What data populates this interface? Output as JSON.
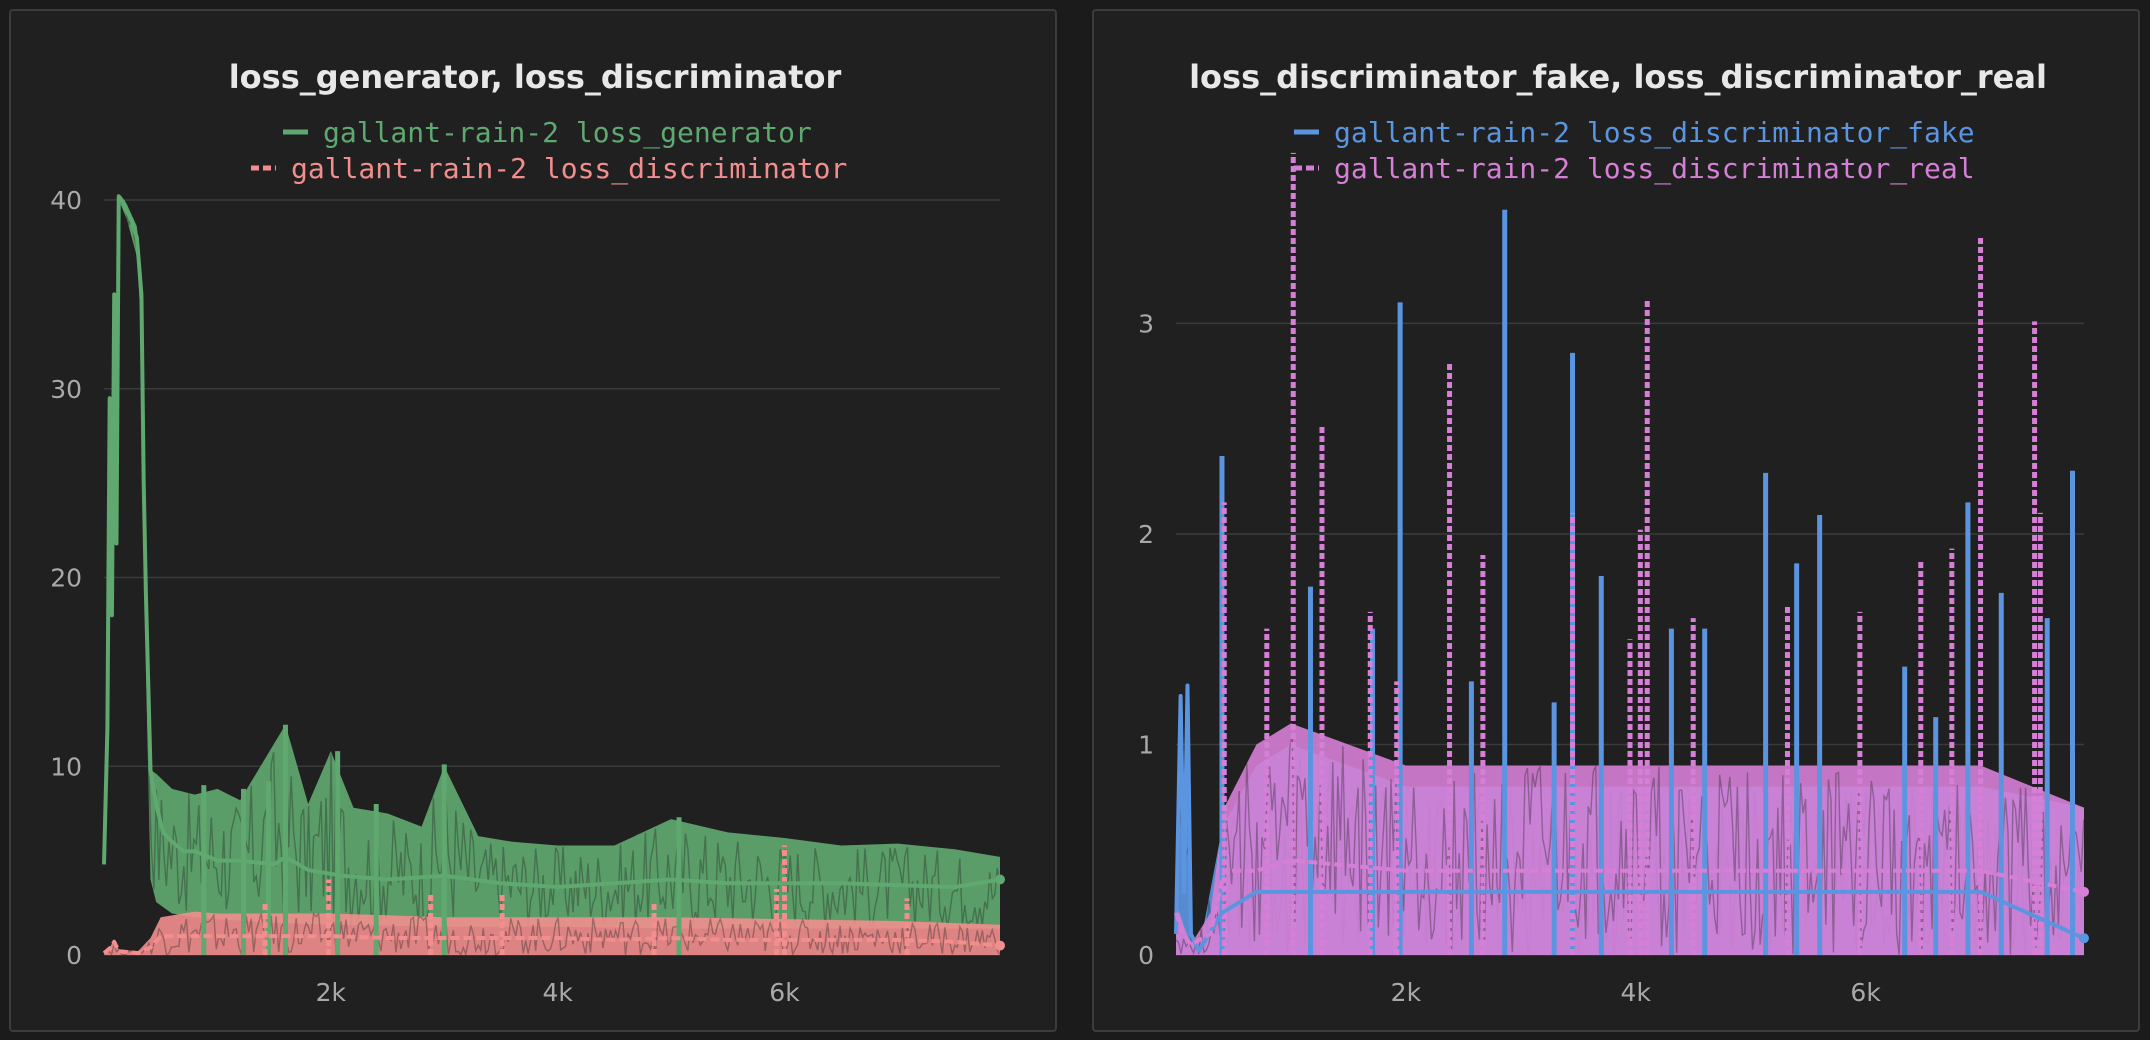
{
  "chart_data": [
    {
      "type": "line",
      "title": "loss_generator, loss_discriminator",
      "xlabel": "",
      "ylabel": "",
      "xlim": [
        0,
        7900
      ],
      "ylim": [
        0,
        40
      ],
      "yticks": [
        0,
        10,
        20,
        30,
        40
      ],
      "ytick_labels": [
        "0",
        "10",
        "20",
        "30",
        "40"
      ],
      "xticks": [
        2000,
        4000,
        6000
      ],
      "xtick_labels": [
        "2k",
        "4k",
        "6k"
      ],
      "grid": true,
      "legend_position": "top-center",
      "series": [
        {
          "name": "gallant-rain-2 loss_generator",
          "color": "#5fa86f",
          "style": "solid",
          "band": true,
          "points": [
            [
              0,
              4.8
            ],
            [
              30,
              12
            ],
            [
              50,
              29.5
            ],
            [
              70,
              18
            ],
            [
              90,
              35
            ],
            [
              110,
              21.8
            ],
            [
              130,
              40.2
            ],
            [
              170,
              39.9
            ],
            [
              200,
              39.4
            ],
            [
              240,
              39
            ],
            [
              290,
              38
            ],
            [
              330,
              35
            ],
            [
              350,
              25
            ],
            [
              370,
              19
            ],
            [
              410,
              9.8
            ],
            [
              460,
              8
            ],
            [
              520,
              6.5
            ],
            [
              600,
              6
            ],
            [
              700,
              5.5
            ],
            [
              800,
              5.5
            ],
            [
              1000,
              5
            ],
            [
              1200,
              5
            ],
            [
              1500,
              4.8
            ],
            [
              1600,
              5.2
            ],
            [
              1800,
              4.5
            ],
            [
              2100,
              4.2
            ],
            [
              2500,
              4
            ],
            [
              3000,
              4.2
            ],
            [
              3500,
              3.8
            ],
            [
              4000,
              3.6
            ],
            [
              4500,
              3.8
            ],
            [
              5000,
              4
            ],
            [
              5500,
              3.8
            ],
            [
              6000,
              3.8
            ],
            [
              6500,
              3.8
            ],
            [
              7000,
              3.7
            ],
            [
              7500,
              3.6
            ],
            [
              7900,
              4
            ]
          ],
          "band_low": [
            [
              0,
              4.8
            ],
            [
              30,
              12
            ],
            [
              50,
              29.5
            ],
            [
              70,
              18
            ],
            [
              90,
              35
            ],
            [
              110,
              21.8
            ],
            [
              130,
              40
            ],
            [
              200,
              39
            ],
            [
              290,
              37
            ],
            [
              330,
              33
            ],
            [
              370,
              15
            ],
            [
              410,
              4
            ],
            [
              460,
              2.8
            ],
            [
              600,
              2.2
            ],
            [
              800,
              2
            ],
            [
              1000,
              1.9
            ],
            [
              1500,
              1.7
            ],
            [
              2000,
              1.6
            ],
            [
              3000,
              1.5
            ],
            [
              4000,
              1.5
            ],
            [
              5000,
              1.4
            ],
            [
              6000,
              1.4
            ],
            [
              7000,
              1.4
            ],
            [
              7900,
              1.4
            ]
          ],
          "band_high": [
            [
              0,
              4.8
            ],
            [
              30,
              12
            ],
            [
              50,
              29.5
            ],
            [
              70,
              18
            ],
            [
              90,
              35
            ],
            [
              110,
              21.8
            ],
            [
              130,
              40.2
            ],
            [
              200,
              39.8
            ],
            [
              290,
              38.6
            ],
            [
              330,
              36
            ],
            [
              370,
              22
            ],
            [
              410,
              9.8
            ],
            [
              460,
              9.6
            ],
            [
              600,
              8.8
            ],
            [
              800,
              8.5
            ],
            [
              1000,
              8.8
            ],
            [
              1200,
              8.2
            ],
            [
              1600,
              12.2
            ],
            [
              1800,
              8
            ],
            [
              2000,
              10.8
            ],
            [
              2200,
              7.8
            ],
            [
              2500,
              7.5
            ],
            [
              2800,
              6.8
            ],
            [
              3000,
              10
            ],
            [
              3300,
              6.3
            ],
            [
              3600,
              6
            ],
            [
              4000,
              5.8
            ],
            [
              4500,
              5.8
            ],
            [
              5000,
              7.2
            ],
            [
              5500,
              6.5
            ],
            [
              6000,
              6.2
            ],
            [
              6500,
              5.8
            ],
            [
              7000,
              5.9
            ],
            [
              7500,
              5.6
            ],
            [
              7900,
              5.2
            ]
          ],
          "spikes": [
            [
              1600,
              12.2
            ],
            [
              2060,
              10.8
            ],
            [
              3000,
              10.1
            ],
            [
              1450,
              9.2
            ],
            [
              1230,
              8.8
            ],
            [
              2400,
              8
            ],
            [
              5070,
              7.3
            ],
            [
              880,
              9
            ]
          ]
        },
        {
          "name": "gallant-rain-2 loss_discriminator",
          "color": "#f28e8e",
          "style": "dashed",
          "band": true,
          "points": [
            [
              0,
              0.1
            ],
            [
              60,
              0.4
            ],
            [
              90,
              0.7
            ],
            [
              130,
              0.2
            ],
            [
              300,
              0.1
            ],
            [
              410,
              0.4
            ],
            [
              500,
              1
            ],
            [
              800,
              1
            ],
            [
              1000,
              1
            ],
            [
              1500,
              1
            ],
            [
              2000,
              1
            ],
            [
              2500,
              0.9
            ],
            [
              3000,
              0.9
            ],
            [
              3500,
              0.9
            ],
            [
              4000,
              0.9
            ],
            [
              4500,
              0.8
            ],
            [
              5000,
              0.9
            ],
            [
              5500,
              0.8
            ],
            [
              6000,
              0.8
            ],
            [
              6500,
              0.8
            ],
            [
              7000,
              0.8
            ],
            [
              7500,
              0.7
            ],
            [
              7900,
              0.5
            ]
          ],
          "band_low": [
            [
              0,
              0
            ],
            [
              7900,
              0
            ]
          ],
          "band_high": [
            [
              0,
              0.2
            ],
            [
              60,
              0.5
            ],
            [
              90,
              0.8
            ],
            [
              130,
              0.3
            ],
            [
              300,
              0.2
            ],
            [
              410,
              0.9
            ],
            [
              500,
              2
            ],
            [
              800,
              2.3
            ],
            [
              1000,
              2.2
            ],
            [
              2000,
              2.2
            ],
            [
              3000,
              2
            ],
            [
              4000,
              2
            ],
            [
              5000,
              2
            ],
            [
              6000,
              1.9
            ],
            [
              7000,
              1.8
            ],
            [
              7900,
              1.6
            ]
          ],
          "spikes": [
            [
              1980,
              4
            ],
            [
              6000,
              5.8
            ],
            [
              5930,
              3.5
            ],
            [
              2880,
              3.2
            ],
            [
              3510,
              3.2
            ],
            [
              4850,
              2.7
            ],
            [
              1420,
              2.8
            ],
            [
              7080,
              3
            ]
          ]
        }
      ]
    },
    {
      "type": "line",
      "title": "loss_discriminator_fake, loss_discriminator_real",
      "xlabel": "",
      "ylabel": "",
      "xlim": [
        0,
        7900
      ],
      "ylim": [
        0,
        3.8
      ],
      "yticks": [
        0,
        1,
        2,
        3
      ],
      "ytick_labels": [
        "0",
        "1",
        "2",
        "3"
      ],
      "xticks": [
        2000,
        4000,
        6000
      ],
      "xtick_labels": [
        "2k",
        "4k",
        "6k"
      ],
      "grid": true,
      "legend_position": "top-center",
      "series": [
        {
          "name": "gallant-rain-2 loss_discriminator_fake",
          "color": "#5b95e0",
          "style": "solid",
          "band": true,
          "points": [
            [
              0,
              0.1
            ],
            [
              40,
              1.23
            ],
            [
              70,
              0.3
            ],
            [
              100,
              1.28
            ],
            [
              130,
              0.1
            ],
            [
              200,
              0.02
            ],
            [
              400,
              0.2
            ],
            [
              700,
              0.3
            ],
            [
              1000,
              0.3
            ],
            [
              2000,
              0.3
            ],
            [
              3000,
              0.3
            ],
            [
              4000,
              0.3
            ],
            [
              5000,
              0.3
            ],
            [
              6000,
              0.3
            ],
            [
              7000,
              0.3
            ],
            [
              7900,
              0.08
            ]
          ],
          "band_low": [
            [
              0,
              0
            ],
            [
              7900,
              0
            ]
          ],
          "band_high": [
            [
              0,
              0.1
            ],
            [
              40,
              1.23
            ],
            [
              70,
              0.3
            ],
            [
              100,
              1.28
            ],
            [
              130,
              0.1
            ],
            [
              200,
              0.02
            ],
            [
              400,
              0.6
            ],
            [
              700,
              0.9
            ],
            [
              1000,
              1
            ],
            [
              1500,
              0.9
            ],
            [
              2000,
              0.8
            ],
            [
              3000,
              0.8
            ],
            [
              4000,
              0.8
            ],
            [
              5000,
              0.8
            ],
            [
              6000,
              0.8
            ],
            [
              7000,
              0.8
            ],
            [
              7900,
              0.7
            ]
          ],
          "spikes": [
            [
              400,
              2.37
            ],
            [
              1950,
              3.1
            ],
            [
              2860,
              3.54
            ],
            [
              3450,
              2.86
            ],
            [
              5130,
              2.29
            ],
            [
              5600,
              2.09
            ],
            [
              6890,
              2.15
            ],
            [
              7800,
              2.3
            ],
            [
              7180,
              1.72
            ],
            [
              1170,
              1.75
            ],
            [
              5400,
              1.86
            ],
            [
              3700,
              1.8
            ],
            [
              6340,
              1.37
            ],
            [
              2570,
              1.3
            ],
            [
              4600,
              1.55
            ],
            [
              6610,
              1.13
            ],
            [
              7580,
              1.6
            ],
            [
              4310,
              1.55
            ],
            [
              3290,
              1.2
            ],
            [
              1710,
              1.55
            ]
          ]
        },
        {
          "name": "gallant-rain-2 loss_discriminator_real",
          "color": "#d67fd6",
          "style": "dashed",
          "band": true,
          "points": [
            [
              0,
              0.2
            ],
            [
              60,
              0.1
            ],
            [
              130,
              0.05
            ],
            [
              300,
              0.1
            ],
            [
              420,
              0.4
            ],
            [
              700,
              0.4
            ],
            [
              1000,
              0.45
            ],
            [
              2000,
              0.4
            ],
            [
              3000,
              0.4
            ],
            [
              4000,
              0.4
            ],
            [
              5000,
              0.4
            ],
            [
              6000,
              0.4
            ],
            [
              7000,
              0.4
            ],
            [
              7900,
              0.3
            ]
          ],
          "band_low": [
            [
              0,
              0
            ],
            [
              7900,
              0
            ]
          ],
          "band_high": [
            [
              0,
              0.25
            ],
            [
              60,
              0.15
            ],
            [
              130,
              0.05
            ],
            [
              300,
              0.2
            ],
            [
              420,
              0.7
            ],
            [
              700,
              1
            ],
            [
              1000,
              1.1
            ],
            [
              1500,
              1
            ],
            [
              2000,
              0.9
            ],
            [
              3000,
              0.9
            ],
            [
              4000,
              0.9
            ],
            [
              5000,
              0.9
            ],
            [
              6000,
              0.9
            ],
            [
              7000,
              0.9
            ],
            [
              7900,
              0.7
            ]
          ],
          "spikes": [
            [
              1020,
              3.81
            ],
            [
              7000,
              3.42
            ],
            [
              4100,
              3.11
            ],
            [
              7470,
              3.01
            ],
            [
              2380,
              2.82
            ],
            [
              1270,
              2.52
            ],
            [
              420,
              2.15
            ],
            [
              7520,
              2.1
            ],
            [
              4040,
              2.02
            ],
            [
              3450,
              2.1
            ],
            [
              6750,
              1.93
            ],
            [
              6480,
              1.88
            ],
            [
              2670,
              1.9
            ],
            [
              5320,
              1.66
            ],
            [
              790,
              1.55
            ],
            [
              1690,
              1.63
            ],
            [
              4500,
              1.6
            ],
            [
              5950,
              1.63
            ],
            [
              3950,
              1.5
            ],
            [
              1920,
              1.3
            ]
          ]
        }
      ]
    }
  ]
}
